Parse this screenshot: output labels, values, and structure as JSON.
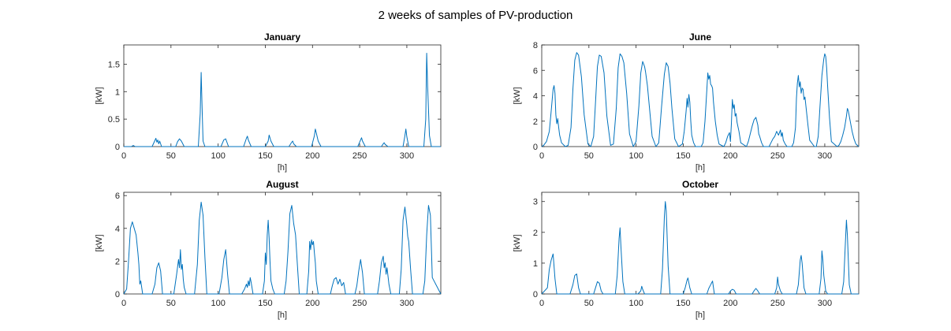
{
  "figure": {
    "title": "2 weeks of samples of PV-production"
  },
  "colors": {
    "line": "#0072BD",
    "axes": "#262626",
    "background": "#ffffff"
  },
  "chart_data": [
    {
      "type": "line",
      "title": "January",
      "xlabel": "[h]",
      "ylabel": "[kW]",
      "xlim": [
        0,
        336
      ],
      "ylim": [
        0,
        1.85
      ],
      "xticks": [
        0,
        50,
        100,
        150,
        200,
        250,
        300
      ],
      "yticks": [
        0,
        0.5,
        1,
        1.5
      ],
      "ytick_labels": [
        "0",
        "0.5",
        "1",
        "1.5"
      ],
      "grid": false,
      "series": [
        {
          "x": [
            0,
            8,
            10,
            12,
            30,
            34,
            35,
            36,
            37,
            38,
            40,
            55,
            57,
            59,
            61,
            64,
            79,
            81,
            82,
            83,
            84,
            86,
            103,
            106,
            108,
            111,
            127,
            130,
            131,
            132,
            135,
            150,
            153,
            154,
            156,
            159,
            175,
            178,
            179,
            180,
            183,
            199,
            202,
            203,
            204,
            206,
            209,
            248,
            251,
            252,
            253,
            256,
            273,
            275,
            276,
            277,
            280,
            296,
            298,
            299,
            300,
            302,
            318,
            320,
            321,
            322,
            324,
            326,
            336
          ],
          "y": [
            0,
            0,
            0.02,
            0,
            0,
            0.15,
            0.08,
            0.12,
            0.05,
            0.1,
            0,
            0,
            0.09,
            0.14,
            0.1,
            0,
            0,
            0.6,
            1.35,
            0.7,
            0.1,
            0,
            0,
            0.12,
            0.14,
            0,
            0,
            0.15,
            0.19,
            0.12,
            0,
            0,
            0.1,
            0.21,
            0.1,
            0,
            0,
            0.08,
            0.1,
            0.05,
            0,
            0,
            0.2,
            0.32,
            0.25,
            0.1,
            0,
            0,
            0.12,
            0.16,
            0.1,
            0,
            0,
            0.05,
            0.07,
            0.04,
            0,
            0,
            0.2,
            0.32,
            0.18,
            0,
            0,
            0.5,
            1.7,
            1.1,
            0.2,
            0,
            0
          ]
        }
      ]
    },
    {
      "type": "line",
      "title": "June",
      "xlabel": "[h]",
      "ylabel": "[kW]",
      "xlim": [
        0,
        336
      ],
      "ylim": [
        0,
        8
      ],
      "xticks": [
        0,
        50,
        100,
        150,
        200,
        250,
        300
      ],
      "yticks": [
        0,
        2,
        4,
        6,
        8
      ],
      "ytick_labels": [
        "0",
        "2",
        "4",
        "6",
        "8"
      ],
      "grid": false,
      "series": [
        {
          "x": [
            0,
            2,
            5,
            8,
            10,
            12,
            13,
            14,
            15,
            16,
            17,
            18,
            19,
            21,
            25,
            28,
            31,
            33,
            35,
            37,
            39,
            42,
            45,
            49,
            52,
            55,
            57,
            59,
            61,
            63,
            66,
            69,
            73,
            76,
            79,
            81,
            83,
            85,
            87,
            90,
            93,
            97,
            100,
            103,
            105,
            107,
            109,
            110,
            112,
            114,
            117,
            121,
            124,
            127,
            130,
            132,
            134,
            136,
            138,
            141,
            145,
            149,
            151,
            153,
            154,
            155,
            156,
            157,
            158,
            159,
            161,
            163,
            169,
            171,
            173,
            175,
            176,
            177,
            178,
            179,
            180,
            181,
            182,
            184,
            186,
            188,
            193,
            195,
            197,
            199,
            200,
            201,
            202,
            203,
            204,
            205,
            206,
            207,
            209,
            211,
            217,
            219,
            221,
            223,
            225,
            227,
            229,
            230,
            231,
            233,
            235,
            241,
            243,
            245,
            247,
            249,
            251,
            253,
            254,
            255,
            256,
            258,
            260,
            265,
            267,
            269,
            270,
            271,
            272,
            273,
            274,
            275,
            276,
            277,
            278,
            279,
            280,
            282,
            284,
            289,
            291,
            293,
            295,
            297,
            299,
            300,
            301,
            302,
            303,
            305,
            307,
            313,
            315,
            317,
            319,
            321,
            323,
            324,
            325,
            327,
            329,
            331,
            333,
            336
          ],
          "y": [
            0,
            0.1,
            0.4,
            1.2,
            2.8,
            4.5,
            4.8,
            4.2,
            2.5,
            1.8,
            2.2,
            1.5,
            0.9,
            0.3,
            0,
            0.1,
            1.5,
            4.5,
            6.8,
            7.4,
            7.2,
            5.5,
            2.5,
            0.2,
            0,
            0.8,
            3.5,
            6.3,
            7.2,
            7.1,
            5.8,
            2.4,
            0.1,
            0.2,
            3.0,
            6.2,
            7.3,
            7.1,
            6.6,
            4.2,
            1.0,
            0,
            0.4,
            3.2,
            5.8,
            6.7,
            6.3,
            5.9,
            4.8,
            3.2,
            0.8,
            0,
            0.3,
            3.1,
            5.7,
            6.6,
            6.3,
            5.0,
            3.0,
            0.6,
            0,
            0.2,
            1.2,
            2.8,
            3.8,
            3.1,
            4.1,
            3.5,
            2.0,
            0.9,
            0.3,
            0,
            0,
            0.3,
            2.0,
            4.5,
            5.8,
            5.3,
            5.6,
            4.9,
            4.8,
            4.6,
            3.5,
            2.0,
            0.9,
            0.2,
            0,
            0.3,
            0.8,
            1.1,
            0.4,
            1.8,
            3.7,
            3.0,
            3.3,
            2.4,
            2.6,
            1.9,
            1.2,
            0.3,
            0,
            0.4,
            1.0,
            1.6,
            2.1,
            2.3,
            1.7,
            1.0,
            0.8,
            0.3,
            0,
            0,
            0.3,
            0.6,
            0.8,
            1.2,
            0.9,
            1.3,
            0.8,
            1.1,
            0.5,
            0.2,
            0,
            0,
            0.3,
            1.5,
            3.8,
            5.0,
            5.6,
            4.7,
            5.1,
            4.2,
            4.6,
            4.5,
            3.7,
            3.9,
            3.2,
            1.8,
            0.5,
            0,
            0,
            0.8,
            3.2,
            5.6,
            6.9,
            7.3,
            7.1,
            6.2,
            4.8,
            2.3,
            0.4,
            0,
            0.1,
            0.4,
            0.9,
            1.5,
            2.4,
            3.0,
            2.8,
            2.0,
            1.2,
            0.6,
            0.2,
            0
          ],
          "comment": ""
        }
      ]
    },
    {
      "type": "line",
      "title": "August",
      "xlabel": "[h]",
      "ylabel": "[kW]",
      "xlim": [
        0,
        336
      ],
      "ylim": [
        0,
        6.2
      ],
      "xticks": [
        0,
        50,
        100,
        150,
        200,
        250,
        300
      ],
      "yticks": [
        0,
        2,
        4,
        6
      ],
      "ytick_labels": [
        "0",
        "2",
        "4",
        "6"
      ],
      "grid": false,
      "series": [
        {
          "x": [
            0,
            3,
            5,
            7,
            9,
            11,
            13,
            15,
            16,
            17,
            18,
            20,
            30,
            33,
            35,
            37,
            39,
            41,
            53,
            56,
            58,
            59,
            60,
            61,
            62,
            63,
            64,
            66,
            75,
            78,
            80,
            82,
            84,
            86,
            88,
            101,
            104,
            106,
            108,
            110,
            112,
            125,
            128,
            130,
            131,
            132,
            133,
            134,
            135,
            137,
            147,
            149,
            150,
            151,
            152,
            153,
            154,
            155,
            156,
            158,
            160,
            170,
            172,
            174,
            176,
            178,
            180,
            182,
            184,
            186,
            194,
            196,
            197,
            198,
            199,
            200,
            201,
            202,
            203,
            204,
            206,
            219,
            221,
            223,
            225,
            227,
            229,
            231,
            233,
            235,
            245,
            247,
            249,
            251,
            253,
            255,
            269,
            271,
            273,
            275,
            276,
            277,
            278,
            279,
            281,
            283,
            292,
            294,
            296,
            298,
            300,
            301,
            302,
            304,
            306,
            317,
            319,
            321,
            323,
            325,
            327,
            336
          ],
          "y": [
            0,
            0.3,
            2.0,
            4.0,
            4.4,
            4.0,
            3.6,
            2.5,
            1.8,
            0.6,
            0.8,
            0,
            0,
            0.6,
            1.6,
            1.9,
            1.4,
            0,
            0,
            1.2,
            2.1,
            1.6,
            2.7,
            1.5,
            1.8,
            0.9,
            0.4,
            0,
            0,
            1.8,
            4.5,
            5.6,
            4.8,
            2.2,
            0,
            0,
            1.0,
            2.1,
            2.7,
            1.2,
            0,
            0,
            0.3,
            0.6,
            0.4,
            0.8,
            0.5,
            1.0,
            0.7,
            0,
            0,
            0.8,
            2.5,
            1.8,
            3.6,
            4.5,
            3.4,
            2.0,
            0.8,
            0.3,
            0,
            0,
            0.8,
            2.6,
            4.9,
            5.4,
            4.3,
            3.6,
            1.8,
            0,
            0,
            1.4,
            3.2,
            2.7,
            3.3,
            3.0,
            3.2,
            2.5,
            1.9,
            0.8,
            0,
            0,
            0.5,
            0.9,
            1.0,
            0.6,
            0.9,
            0.5,
            0.7,
            0,
            0,
            0.5,
            1.4,
            2.1,
            1.3,
            0,
            0,
            0.8,
            1.9,
            2.3,
            1.6,
            1.9,
            1.2,
            1.6,
            0.6,
            0,
            0,
            1.5,
            4.5,
            5.3,
            4.2,
            3.5,
            3.2,
            1.5,
            0,
            0,
            0.8,
            3.6,
            5.4,
            4.8,
            1.0,
            0
          ]
        }
      ]
    },
    {
      "type": "line",
      "title": "October",
      "xlabel": "[h]",
      "ylabel": "[kW]",
      "xlim": [
        0,
        336
      ],
      "ylim": [
        0,
        3.3
      ],
      "xticks": [
        0,
        50,
        100,
        150,
        200,
        250,
        300
      ],
      "yticks": [
        0,
        1,
        2,
        3
      ],
      "ytick_labels": [
        "0",
        "1",
        "2",
        "3"
      ],
      "grid": false,
      "series": [
        {
          "x": [
            0,
            6,
            8,
            10,
            12,
            14,
            16,
            30,
            33,
            35,
            37,
            39,
            41,
            55,
            57,
            59,
            61,
            63,
            65,
            78,
            80,
            82,
            83,
            84,
            86,
            88,
            102,
            105,
            106,
            107,
            109,
            126,
            128,
            130,
            131,
            132,
            134,
            136,
            150,
            152,
            154,
            155,
            157,
            159,
            175,
            177,
            179,
            181,
            183,
            198,
            200,
            202,
            204,
            206,
            223,
            225,
            227,
            229,
            231,
            247,
            249,
            250,
            251,
            253,
            255,
            270,
            272,
            274,
            275,
            276,
            278,
            280,
            294,
            296,
            297,
            298,
            299,
            301,
            303,
            318,
            320,
            322,
            323,
            324,
            326,
            328,
            336
          ],
          "y": [
            0,
            0.2,
            0.8,
            1.1,
            1.3,
            0.5,
            0,
            0,
            0.3,
            0.6,
            0.65,
            0.2,
            0,
            0,
            0.2,
            0.4,
            0.35,
            0.1,
            0,
            0,
            0.6,
            1.8,
            2.15,
            1.5,
            0.4,
            0,
            0,
            0.1,
            0.25,
            0.15,
            0,
            0,
            0.8,
            2.5,
            3.0,
            2.7,
            0.9,
            0,
            0,
            0.2,
            0.45,
            0.52,
            0.2,
            0,
            0,
            0.18,
            0.3,
            0.42,
            0,
            0,
            0.1,
            0.15,
            0.12,
            0,
            0,
            0.1,
            0.18,
            0.1,
            0,
            0,
            0.2,
            0.55,
            0.3,
            0.1,
            0,
            0,
            0.3,
            1.1,
            1.25,
            1.0,
            0.2,
            0,
            0,
            0.5,
            1.4,
            1.1,
            0.6,
            0.1,
            0,
            0,
            0.4,
            1.8,
            2.4,
            1.9,
            0.3,
            0,
            0
          ]
        }
      ]
    }
  ]
}
